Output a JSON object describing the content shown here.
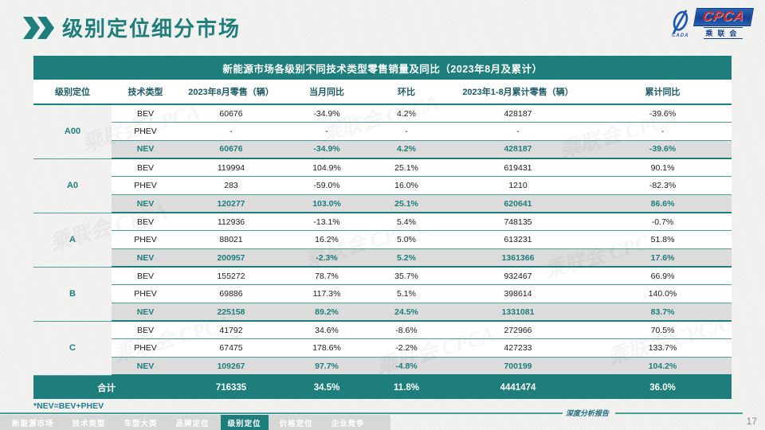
{
  "page": {
    "title": "级别定位细分市场",
    "page_number": "17",
    "footnote": "*NEV=BEV+PHEV",
    "report_label": "深度分析报告",
    "watermark_text": "乘联会 CPCA"
  },
  "logo": {
    "cpca": "CPCA",
    "chinese": "乘联会",
    "mark_sub": "CADA"
  },
  "colors": {
    "accent_teal": "#1E7E7C",
    "header_text_dark": "#1E5A66",
    "highlight_row_bg": "#DCDCDC",
    "logo_navy": "#17418F",
    "logo_red": "#D42A1E",
    "nav_bar_gray": "#D7D7D6"
  },
  "table": {
    "title": "新能源市场各级别不同技术类型零售销量及同比（2023年8月及累计）",
    "columns": [
      "级别定位",
      "技术类型",
      "2023年8月零售（辆）",
      "当月同比",
      "环比",
      "2023年1-8月累计零售（辆）",
      "累计同比"
    ],
    "segments": [
      {
        "name": "A00",
        "rows": [
          {
            "type": "BEV",
            "values": [
              "60676",
              "-34.9%",
              "4.2%",
              "428187",
              "-39.6%"
            ]
          },
          {
            "type": "PHEV",
            "values": [
              "-",
              "-",
              "-",
              "-",
              "-"
            ]
          },
          {
            "type": "NEV",
            "values": [
              "60676",
              "-34.9%",
              "4.2%",
              "428187",
              "-39.6%"
            ],
            "highlight": true
          }
        ]
      },
      {
        "name": "A0",
        "rows": [
          {
            "type": "BEV",
            "values": [
              "119994",
              "104.9%",
              "25.1%",
              "619431",
              "90.1%"
            ]
          },
          {
            "type": "PHEV",
            "values": [
              "283",
              "-59.0%",
              "16.0%",
              "1210",
              "-82.3%"
            ]
          },
          {
            "type": "NEV",
            "values": [
              "120277",
              "103.0%",
              "25.1%",
              "620641",
              "86.6%"
            ],
            "highlight": true
          }
        ]
      },
      {
        "name": "A",
        "rows": [
          {
            "type": "BEV",
            "values": [
              "112936",
              "-13.1%",
              "5.4%",
              "748135",
              "-0.7%"
            ]
          },
          {
            "type": "PHEV",
            "values": [
              "88021",
              "16.2%",
              "5.0%",
              "613231",
              "51.8%"
            ]
          },
          {
            "type": "NEV",
            "values": [
              "200957",
              "-2.3%",
              "5.2%",
              "1361366",
              "17.6%"
            ],
            "highlight": true
          }
        ]
      },
      {
        "name": "B",
        "rows": [
          {
            "type": "BEV",
            "values": [
              "155272",
              "78.7%",
              "35.7%",
              "932467",
              "66.9%"
            ]
          },
          {
            "type": "PHEV",
            "values": [
              "69886",
              "117.3%",
              "5.1%",
              "398614",
              "140.0%"
            ]
          },
          {
            "type": "NEV",
            "values": [
              "225158",
              "89.2%",
              "24.5%",
              "1331081",
              "83.7%"
            ],
            "highlight": true
          }
        ]
      },
      {
        "name": "C",
        "rows": [
          {
            "type": "BEV",
            "values": [
              "41792",
              "34.6%",
              "-8.6%",
              "272966",
              "70.5%"
            ]
          },
          {
            "type": "PHEV",
            "values": [
              "67475",
              "178.6%",
              "-2.2%",
              "427233",
              "133.7%"
            ]
          },
          {
            "type": "NEV",
            "values": [
              "109267",
              "97.7%",
              "-4.8%",
              "700199",
              "104.2%"
            ],
            "highlight": true
          }
        ]
      }
    ],
    "total": {
      "label": "合计",
      "values": [
        "716335",
        "34.5%",
        "11.8%",
        "4441474",
        "36.0%"
      ]
    }
  },
  "bottom_nav": {
    "items": [
      {
        "label": "新能源市场",
        "active": false
      },
      {
        "label": "技术类型",
        "active": false
      },
      {
        "label": "车型大类",
        "active": false
      },
      {
        "label": "品牌定位",
        "active": false
      },
      {
        "label": "级别定位",
        "active": true
      },
      {
        "label": "价格定位",
        "active": false
      },
      {
        "label": "企业竞争",
        "active": false
      }
    ]
  }
}
